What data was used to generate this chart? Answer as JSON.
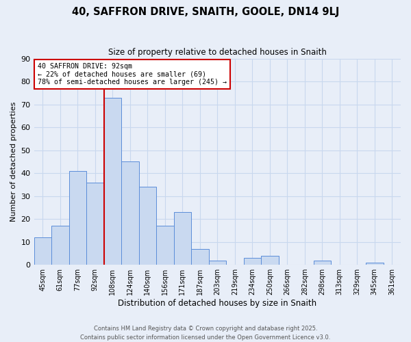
{
  "title": "40, SAFFRON DRIVE, SNAITH, GOOLE, DN14 9LJ",
  "subtitle": "Size of property relative to detached houses in Snaith",
  "xlabel": "Distribution of detached houses by size in Snaith",
  "ylabel": "Number of detached properties",
  "bar_labels": [
    "45sqm",
    "61sqm",
    "77sqm",
    "92sqm",
    "108sqm",
    "124sqm",
    "140sqm",
    "156sqm",
    "171sqm",
    "187sqm",
    "203sqm",
    "219sqm",
    "234sqm",
    "250sqm",
    "266sqm",
    "282sqm",
    "298sqm",
    "313sqm",
    "329sqm",
    "345sqm",
    "361sqm"
  ],
  "bar_values": [
    12,
    17,
    41,
    36,
    73,
    45,
    34,
    17,
    23,
    7,
    2,
    0,
    3,
    4,
    0,
    0,
    2,
    0,
    0,
    1,
    0
  ],
  "bar_color": "#c9d9f0",
  "bar_edge_color": "#5b8dd9",
  "vline_x_index": 3,
  "vline_color": "#cc0000",
  "annotation_text": "40 SAFFRON DRIVE: 92sqm\n← 22% of detached houses are smaller (69)\n78% of semi-detached houses are larger (245) →",
  "annotation_box_color": "#ffffff",
  "annotation_box_edge_color": "#cc0000",
  "ylim": [
    0,
    90
  ],
  "yticks": [
    0,
    10,
    20,
    30,
    40,
    50,
    60,
    70,
    80,
    90
  ],
  "grid_color": "#c8d8ee",
  "background_color": "#e8eef8",
  "footer_line1": "Contains HM Land Registry data © Crown copyright and database right 2025.",
  "footer_line2": "Contains public sector information licensed under the Open Government Licence v3.0."
}
